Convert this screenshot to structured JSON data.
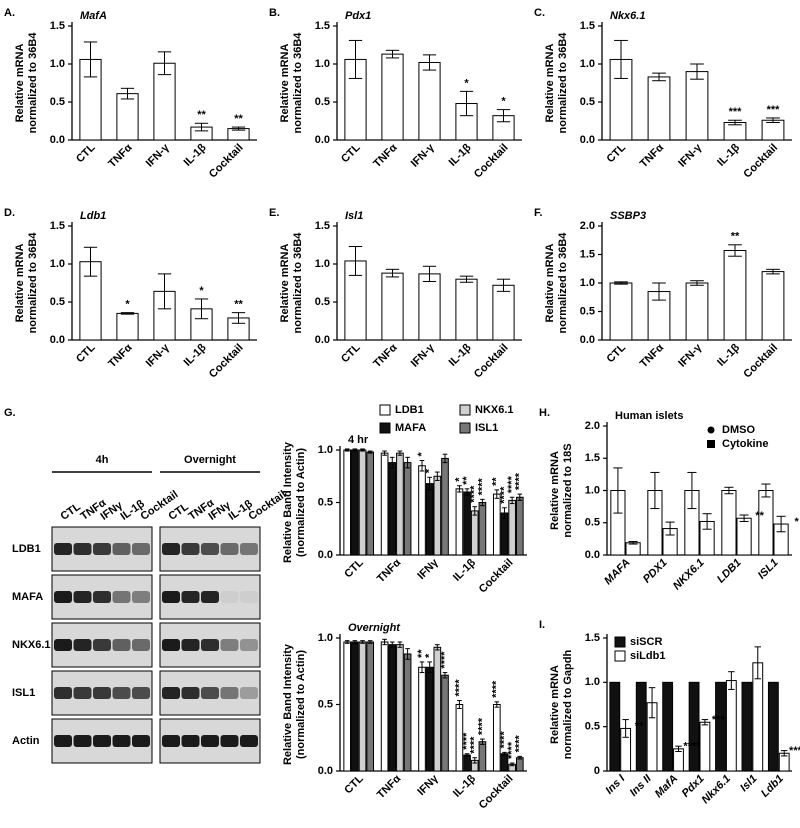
{
  "chart_data": [
    {
      "type": "bar",
      "label": "A.",
      "title": "MafA",
      "ylabel": [
        "Relative mRNA",
        "normalized to 36B4"
      ],
      "categories": [
        "CTL",
        "TNFα",
        "IFN-γ",
        "IL-1β",
        "Cocktail"
      ],
      "series": [
        {
          "name": "MafA",
          "color": "#ffffff",
          "values": [
            1.06,
            0.61,
            1.01,
            0.17,
            0.15
          ],
          "errors": [
            0.23,
            0.07,
            0.15,
            0.05,
            0.02
          ],
          "sig": [
            null,
            null,
            null,
            "**",
            "**"
          ]
        }
      ],
      "ylim": [
        0,
        1.5
      ],
      "yticks": [
        {
          "value": 0,
          "label": "0.0"
        },
        0.5,
        {
          "value": 1,
          "label": "1.0"
        },
        1.5
      ]
    },
    {
      "type": "bar",
      "label": "B.",
      "title": "Pdx1",
      "ylabel": [
        "Relative mRNA",
        "normalized to 36B4"
      ],
      "categories": [
        "CTL",
        "TNFα",
        "IFN-γ",
        "IL-1β",
        "Cocktail"
      ],
      "series": [
        {
          "name": "Pdx1",
          "color": "#ffffff",
          "values": [
            1.06,
            1.13,
            1.02,
            0.48,
            0.32
          ],
          "errors": [
            0.25,
            0.05,
            0.1,
            0.16,
            0.08
          ],
          "sig": [
            null,
            null,
            null,
            "*",
            "*"
          ]
        }
      ],
      "ylim": [
        0,
        1.5
      ],
      "yticks": [
        {
          "value": 0,
          "label": "0.0"
        },
        0.5,
        {
          "value": 1,
          "label": "1.0"
        },
        1.5
      ]
    },
    {
      "type": "bar",
      "label": "C.",
      "title": "Nkx6.1",
      "ylabel": [
        "Relative mRNA",
        "normalized to 36B4"
      ],
      "categories": [
        "CTL",
        "TNFα",
        "IFN-γ",
        "IL-1β",
        "Cocktail"
      ],
      "series": [
        {
          "name": "Nkx6.1",
          "color": "#ffffff",
          "values": [
            1.06,
            0.83,
            0.9,
            0.23,
            0.26
          ],
          "errors": [
            0.25,
            0.05,
            0.1,
            0.03,
            0.03
          ],
          "sig": [
            null,
            null,
            null,
            "***",
            "***"
          ]
        }
      ],
      "ylim": [
        0,
        1.5
      ],
      "yticks": [
        {
          "value": 0,
          "label": "0.0"
        },
        0.5,
        {
          "value": 1,
          "label": "1.0"
        },
        1.5
      ]
    },
    {
      "type": "bar",
      "label": "D.",
      "title": "Ldb1",
      "ylabel": [
        "Relative mRNA",
        "normalized to 36B4"
      ],
      "categories": [
        "CTL",
        "TNFα",
        "IFN-γ",
        "IL-1β",
        "Cocktail"
      ],
      "series": [
        {
          "name": "Ldb1",
          "color": "#ffffff",
          "values": [
            1.03,
            0.35,
            0.64,
            0.41,
            0.29
          ],
          "errors": [
            0.19,
            0.01,
            0.23,
            0.13,
            0.07
          ],
          "sig": [
            null,
            "*",
            null,
            "*",
            "**"
          ]
        }
      ],
      "ylim": [
        0,
        1.5
      ],
      "yticks": [
        {
          "value": 0,
          "label": "0.0"
        },
        0.5,
        {
          "value": 1,
          "label": "1.0"
        },
        1.5
      ]
    },
    {
      "type": "bar",
      "label": "E.",
      "title": "Isl1",
      "ylabel": [
        "Relative mRNA",
        "normalized to 36B4"
      ],
      "categories": [
        "CTL",
        "TNFα",
        "IFN-γ",
        "IL-1β",
        "Cocktail"
      ],
      "series": [
        {
          "name": "Isl1",
          "color": "#ffffff",
          "values": [
            1.04,
            0.88,
            0.87,
            0.8,
            0.72
          ],
          "errors": [
            0.19,
            0.05,
            0.1,
            0.04,
            0.08
          ],
          "sig": [
            null,
            null,
            null,
            null,
            null
          ]
        }
      ],
      "ylim": [
        0,
        1.5
      ],
      "yticks": [
        {
          "value": 0,
          "label": "0.0"
        },
        0.5,
        {
          "value": 1,
          "label": "1.0"
        },
        1.5
      ]
    },
    {
      "type": "bar",
      "label": "F.",
      "title": "SSBP3",
      "ylabel": [
        "Relative mRNA",
        "normalized to 36B4"
      ],
      "categories": [
        "CTL",
        "TNFα",
        "IFN-γ",
        "IL-1β",
        "Cocktail"
      ],
      "series": [
        {
          "name": "SSBP3",
          "color": "#ffffff",
          "values": [
            1.0,
            0.85,
            1.0,
            1.57,
            1.2
          ],
          "errors": [
            0.02,
            0.15,
            0.04,
            0.1,
            0.04
          ],
          "sig": [
            null,
            null,
            null,
            "**",
            null
          ]
        }
      ],
      "ylim": [
        0,
        2
      ],
      "yticks": [
        {
          "value": 0,
          "label": "0.0"
        },
        0.5,
        {
          "value": 1,
          "label": "1.0"
        },
        1.5,
        {
          "value": 2,
          "label": "2.0"
        }
      ]
    },
    {
      "type": "bar",
      "title": "4 hr",
      "ylabel": [
        "Relative Band Intensity",
        "(normalized to Actin)"
      ],
      "legend": "top",
      "categories": [
        "CTL",
        "TNFα",
        "IFNγ",
        "IL-1β",
        "Cocktail"
      ],
      "series": [
        {
          "name": "LDB1",
          "color": "#ffffff",
          "values": [
            1.0,
            0.97,
            0.85,
            0.63,
            0.58
          ],
          "errors": [
            0.01,
            0.02,
            0.05,
            0.03,
            0.04
          ],
          "sig": [
            null,
            null,
            "*",
            "*",
            "**"
          ]
        },
        {
          "name": "MAFA",
          "color": "#111111",
          "values": [
            1.0,
            0.88,
            0.68,
            0.6,
            0.4
          ],
          "errors": [
            0.01,
            0.05,
            0.06,
            0.03,
            0.05
          ],
          "sig": [
            null,
            null,
            "*",
            "**",
            "****"
          ]
        },
        {
          "name": "NKX6.1",
          "color": "#d0d0d0",
          "values": [
            1.0,
            0.97,
            0.75,
            0.42,
            0.52
          ],
          "errors": [
            0.01,
            0.02,
            0.04,
            0.04,
            0.03
          ],
          "sig": [
            null,
            null,
            null,
            "****",
            "****"
          ]
        },
        {
          "name": "ISL1",
          "color": "#777777",
          "values": [
            0.98,
            0.88,
            0.92,
            0.5,
            0.55
          ],
          "errors": [
            0.01,
            0.05,
            0.04,
            0.03,
            0.03
          ],
          "sig": [
            null,
            null,
            null,
            "****",
            "****"
          ]
        }
      ],
      "ylim": [
        0,
        1
      ],
      "yticks": [
        {
          "value": 0,
          "label": "0.0"
        },
        0.5,
        {
          "value": 1,
          "label": "1.0"
        }
      ]
    },
    {
      "type": "bar",
      "title": "Overnight",
      "ylabel": [
        "Relative Band Intensity",
        "(normalized to Actin)"
      ],
      "categories": [
        "CTL",
        "TNFα",
        "IFNγ",
        "IL-1β",
        "Cocktail"
      ],
      "series": [
        {
          "name": "LDB1",
          "color": "#ffffff",
          "values": [
            0.97,
            0.97,
            0.78,
            0.5,
            0.5
          ],
          "errors": [
            0.01,
            0.02,
            0.04,
            0.03,
            0.02
          ],
          "sig": [
            null,
            null,
            "**",
            "****",
            "****"
          ]
        },
        {
          "name": "MAFA",
          "color": "#111111",
          "values": [
            0.97,
            0.95,
            0.78,
            0.12,
            0.13
          ],
          "errors": [
            0.01,
            0.02,
            0.04,
            0.01,
            0.01
          ],
          "sig": [
            null,
            null,
            "*",
            "****",
            "****"
          ]
        },
        {
          "name": "NKX6.1",
          "color": "#d0d0d0",
          "values": [
            0.97,
            0.95,
            0.93,
            0.08,
            0.05
          ],
          "errors": [
            0.01,
            0.02,
            0.02,
            0.02,
            0.01
          ],
          "sig": [
            null,
            null,
            null,
            "****",
            "****"
          ]
        },
        {
          "name": "ISL1",
          "color": "#777777",
          "values": [
            0.97,
            0.88,
            0.72,
            0.22,
            0.1
          ],
          "errors": [
            0.01,
            0.04,
            0.02,
            0.02,
            0.01
          ],
          "sig": [
            null,
            null,
            "****",
            "****",
            "****"
          ]
        }
      ],
      "ylim": [
        0,
        1
      ],
      "yticks": [
        {
          "value": 0,
          "label": "0.0"
        },
        0.5,
        {
          "value": 1,
          "label": "1.0"
        }
      ]
    },
    {
      "type": "bar",
      "label": "H.",
      "title": "Human islets",
      "ylabel": [
        "Relative mRNA",
        "normalized to 18S"
      ],
      "legend": "upper right",
      "categories": [
        "MAFA",
        "PDX1",
        "NKX6.1",
        "LDB1",
        "ISL1"
      ],
      "series": [
        {
          "name": "DMSO",
          "color": "#ffffff",
          "values": [
            1.0,
            1.0,
            1.0,
            1.0,
            1.0
          ],
          "errors": [
            0.35,
            0.28,
            0.28,
            0.05,
            0.1
          ],
          "sig": [
            null,
            null,
            null,
            null,
            null
          ]
        },
        {
          "name": "Cytokine",
          "color": "#ffffff",
          "values": [
            0.19,
            0.41,
            0.52,
            0.57,
            0.48
          ],
          "errors": [
            0.02,
            0.1,
            0.12,
            0.05,
            0.12
          ],
          "sig": [
            null,
            null,
            null,
            "**",
            "*"
          ]
        }
      ],
      "ylim": [
        0,
        2
      ],
      "yticks": [
        {
          "value": 0,
          "label": "0.0"
        },
        0.5,
        {
          "value": 1,
          "label": "1.0"
        },
        1.5,
        {
          "value": 2,
          "label": "2.0"
        }
      ]
    },
    {
      "type": "bar",
      "label": "I.",
      "ylabel": [
        "Relative mRNA",
        "normalized to Gapdh"
      ],
      "legend": "upper left",
      "categories": [
        "Ins I",
        "Ins II",
        "MafA",
        "Pdx1",
        "Nkx6.1",
        "Isl1",
        "Ldb1"
      ],
      "series": [
        {
          "name": "siSCR",
          "color": "#111111",
          "values": [
            1,
            1,
            1,
            1,
            1,
            1,
            1
          ],
          "errors": [
            0,
            0,
            0,
            0,
            0,
            0,
            0
          ],
          "sig": [
            null,
            null,
            null,
            null,
            null,
            null,
            null
          ]
        },
        {
          "name": "siLdb1",
          "color": "#ffffff",
          "values": [
            0.48,
            0.77,
            0.25,
            0.55,
            1.02,
            1.22,
            0.2
          ],
          "errors": [
            0.1,
            0.17,
            0.03,
            0.03,
            0.1,
            0.18,
            0.03
          ],
          "sig": [
            "**",
            null,
            "****",
            "***",
            null,
            null,
            "****"
          ]
        }
      ],
      "ylim": [
        0,
        1.5
      ],
      "yticks": [
        0,
        0.5,
        {
          "value": 1,
          "label": "1.0"
        },
        1.5
      ]
    }
  ],
  "blot": {
    "label": "G.",
    "times": [
      "4h",
      "Overnight"
    ],
    "lanes": [
      "CTL",
      "TNFα",
      "IFNγ",
      "IL-1β",
      "Cocktail"
    ],
    "proteins": [
      "LDB1",
      "MAFA",
      "NKX6.1",
      "ISL1",
      "Actin"
    ]
  }
}
